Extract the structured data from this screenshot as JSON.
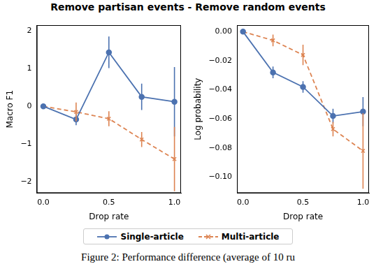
{
  "title": "Remove partisan events - Remove random events",
  "caption": "Figure 2: Performance difference (average of 10 ru",
  "chart_data": [
    {
      "type": "line",
      "x_label": "Drop rate",
      "y_label": "Macro F1",
      "x": [
        0.0,
        0.25,
        0.5,
        0.75,
        1.0
      ],
      "xlim": [
        -0.05,
        1.05
      ],
      "xticks": [
        {
          "value": 0,
          "label": "0.0"
        },
        {
          "value": 0.5,
          "label": "0.5"
        },
        {
          "value": 1,
          "label": "1.0"
        }
      ],
      "ylim": [
        -2.3,
        2.15
      ],
      "yticks": [
        {
          "value": -2,
          "label": "−2"
        },
        {
          "value": -1,
          "label": "−1"
        },
        0,
        1,
        2
      ],
      "grid": false,
      "legend": "bottom",
      "series": [
        {
          "name": "Single-article",
          "color": "#4c72b0",
          "marker": "circle",
          "line_style": "solid",
          "values": [
            0,
            -0.35,
            1.43,
            0.25,
            0.12
          ],
          "errors": [
            0,
            0.15,
            0.42,
            0.35,
            0.92
          ]
        },
        {
          "name": "Multi-article",
          "color": "#dd8452",
          "marker": "x",
          "line_style": "dashed",
          "values": [
            0,
            -0.15,
            -0.33,
            -0.88,
            -1.4
          ],
          "errors": [
            0,
            0.25,
            0.2,
            0.2,
            0.85
          ]
        }
      ]
    },
    {
      "type": "line",
      "x_label": "Drop rate",
      "y_label": "Log probability",
      "x": [
        0.0,
        0.25,
        0.5,
        0.75,
        1.0
      ],
      "xlim": [
        -0.05,
        1.05
      ],
      "xticks": [
        {
          "value": 0,
          "label": "0.0"
        },
        {
          "value": 0.5,
          "label": "0.5"
        },
        {
          "value": 1,
          "label": "1.0"
        }
      ],
      "ylim": [
        -0.111,
        0.0045
      ],
      "yticks": [
        {
          "value": -0.1,
          "label": "−0.10"
        },
        {
          "value": -0.08,
          "label": "−0.08"
        },
        {
          "value": -0.06,
          "label": "−0.06"
        },
        {
          "value": -0.04,
          "label": "−0.04"
        },
        {
          "value": -0.02,
          "label": "−0.02"
        },
        {
          "value": 0,
          "label": "0.00"
        }
      ],
      "grid": false,
      "legend": "bottom",
      "series": [
        {
          "name": "Single-article",
          "color": "#4c72b0",
          "marker": "circle",
          "line_style": "solid",
          "values": [
            0,
            -0.028,
            -0.038,
            -0.058,
            -0.055
          ],
          "errors": [
            0,
            0.004,
            0.004,
            0.005,
            0.01
          ]
        },
        {
          "name": "Multi-article",
          "color": "#dd8452",
          "marker": "x",
          "line_style": "dashed",
          "values": [
            0,
            -0.006,
            -0.016,
            -0.067,
            -0.082
          ],
          "errors": [
            0,
            0.004,
            0.007,
            0.005,
            0.026
          ]
        }
      ]
    }
  ]
}
